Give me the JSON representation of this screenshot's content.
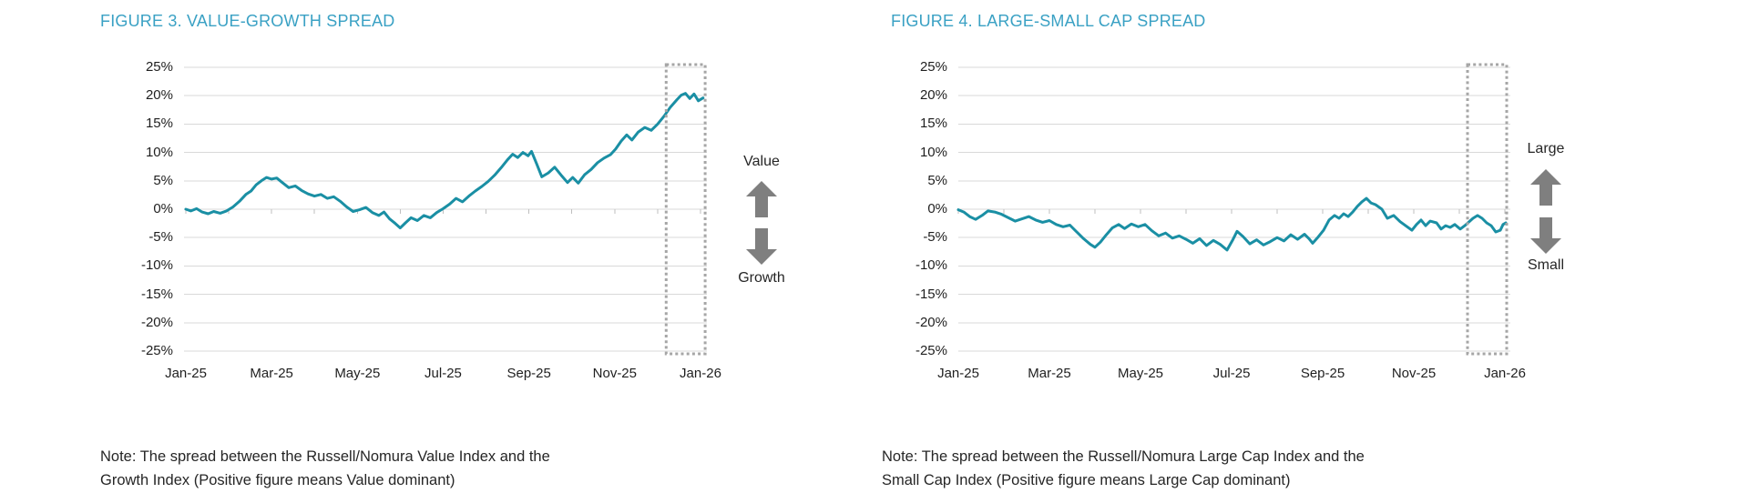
{
  "page": {
    "background": "#ffffff"
  },
  "chart_data": [
    {
      "type": "line",
      "title": "FIGURE 3. VALUE-GROWTH SPREAD",
      "title_color": "#3aa1c4",
      "note_line1": "Note: The spread between the Russell/Nomura Value Index and the",
      "note_line2": "Growth Index (Positive figure means Value dominant)",
      "annotation": {
        "top": "Value",
        "bottom": "Growth",
        "arrow_color": "#7f7f7f"
      },
      "x_tick_labels": [
        "Jan-25",
        "Mar-25",
        "May-25",
        "Jul-25",
        "Sep-25",
        "Nov-25",
        "Jan-26"
      ],
      "y_tick_labels": [
        "25%",
        "20%",
        "15%",
        "10%",
        "5%",
        "0%",
        "-5%",
        "-10%",
        "-15%",
        "-20%",
        "-25%"
      ],
      "ylim": [
        -25,
        25
      ],
      "grid": true,
      "grid_color": "#d9d9d9",
      "tick_color": "#bfbfbf",
      "line_color": "#1a8fa4",
      "highlight_box": {
        "from_month": 11.2,
        "to_month": 12.11,
        "color": "#a6a6a6"
      },
      "series": [
        {
          "name": "Value minus Growth spread (%)",
          "points": [
            [
              0.0,
              0.0
            ],
            [
              0.12,
              -0.3
            ],
            [
              0.25,
              0.1
            ],
            [
              0.38,
              -0.5
            ],
            [
              0.52,
              -0.8
            ],
            [
              0.65,
              -0.4
            ],
            [
              0.8,
              -0.7
            ],
            [
              0.95,
              -0.3
            ],
            [
              1.1,
              0.4
            ],
            [
              1.25,
              1.4
            ],
            [
              1.4,
              2.6
            ],
            [
              1.52,
              3.2
            ],
            [
              1.64,
              4.3
            ],
            [
              1.76,
              5.0
            ],
            [
              1.88,
              5.6
            ],
            [
              2.0,
              5.3
            ],
            [
              2.12,
              5.5
            ],
            [
              2.25,
              4.7
            ],
            [
              2.4,
              3.8
            ],
            [
              2.55,
              4.1
            ],
            [
              2.7,
              3.3
            ],
            [
              2.85,
              2.7
            ],
            [
              3.0,
              2.3
            ],
            [
              3.15,
              2.6
            ],
            [
              3.3,
              1.9
            ],
            [
              3.45,
              2.2
            ],
            [
              3.6,
              1.4
            ],
            [
              3.75,
              0.4
            ],
            [
              3.9,
              -0.4
            ],
            [
              4.05,
              -0.1
            ],
            [
              4.2,
              0.3
            ],
            [
              4.35,
              -0.6
            ],
            [
              4.5,
              -1.1
            ],
            [
              4.62,
              -0.5
            ],
            [
              4.75,
              -1.7
            ],
            [
              4.88,
              -2.5
            ],
            [
              5.0,
              -3.3
            ],
            [
              5.12,
              -2.4
            ],
            [
              5.25,
              -1.5
            ],
            [
              5.4,
              -2.0
            ],
            [
              5.55,
              -1.1
            ],
            [
              5.7,
              -1.5
            ],
            [
              5.85,
              -0.6
            ],
            [
              6.0,
              0.1
            ],
            [
              6.15,
              0.9
            ],
            [
              6.3,
              1.9
            ],
            [
              6.45,
              1.3
            ],
            [
              6.6,
              2.3
            ],
            [
              6.75,
              3.2
            ],
            [
              6.9,
              4.0
            ],
            [
              7.05,
              4.9
            ],
            [
              7.2,
              6.0
            ],
            [
              7.35,
              7.3
            ],
            [
              7.5,
              8.7
            ],
            [
              7.62,
              9.7
            ],
            [
              7.74,
              9.1
            ],
            [
              7.86,
              10.0
            ],
            [
              7.98,
              9.4
            ],
            [
              8.06,
              10.2
            ],
            [
              8.18,
              8.0
            ],
            [
              8.3,
              5.7
            ],
            [
              8.45,
              6.4
            ],
            [
              8.6,
              7.4
            ],
            [
              8.75,
              6.0
            ],
            [
              8.9,
              4.7
            ],
            [
              9.02,
              5.6
            ],
            [
              9.15,
              4.6
            ],
            [
              9.3,
              6.1
            ],
            [
              9.45,
              7.0
            ],
            [
              9.6,
              8.2
            ],
            [
              9.75,
              9.0
            ],
            [
              9.9,
              9.6
            ],
            [
              10.02,
              10.6
            ],
            [
              10.15,
              12.0
            ],
            [
              10.28,
              13.1
            ],
            [
              10.4,
              12.2
            ],
            [
              10.55,
              13.6
            ],
            [
              10.7,
              14.4
            ],
            [
              10.85,
              13.9
            ],
            [
              11.0,
              15.0
            ],
            [
              11.15,
              16.4
            ],
            [
              11.3,
              18.0
            ],
            [
              11.45,
              19.3
            ],
            [
              11.55,
              20.1
            ],
            [
              11.65,
              20.4
            ],
            [
              11.75,
              19.5
            ],
            [
              11.85,
              20.3
            ],
            [
              11.95,
              19.1
            ],
            [
              12.06,
              19.6
            ]
          ]
        }
      ]
    },
    {
      "type": "line",
      "title": "FIGURE 4. LARGE-SMALL CAP SPREAD",
      "title_color": "#3aa1c4",
      "note_line1": "Note: The spread between the Russell/Nomura Large Cap Index and the",
      "note_line2": "Small Cap Index (Positive figure means Large Cap dominant)",
      "annotation": {
        "top": "Large",
        "bottom": "Small",
        "arrow_color": "#7f7f7f"
      },
      "x_tick_labels": [
        "Jan-25",
        "Mar-25",
        "May-25",
        "Jul-25",
        "Sep-25",
        "Nov-25",
        "Jan-26"
      ],
      "y_tick_labels": [
        "25%",
        "20%",
        "15%",
        "10%",
        "5%",
        "0%",
        "-5%",
        "-10%",
        "-15%",
        "-20%",
        "-25%"
      ],
      "ylim": [
        -25,
        25
      ],
      "grid": true,
      "grid_color": "#d9d9d9",
      "tick_color": "#bfbfbf",
      "line_color": "#1a8fa4",
      "highlight_box": {
        "from_month": 11.18,
        "to_month": 12.04,
        "color": "#a6a6a6"
      },
      "series": [
        {
          "name": "Large Cap minus Small Cap spread (%)",
          "points": [
            [
              0.0,
              -0.1
            ],
            [
              0.12,
              -0.5
            ],
            [
              0.25,
              -1.3
            ],
            [
              0.38,
              -1.8
            ],
            [
              0.52,
              -1.1
            ],
            [
              0.65,
              -0.3
            ],
            [
              0.8,
              -0.5
            ],
            [
              0.95,
              -0.9
            ],
            [
              1.1,
              -1.5
            ],
            [
              1.25,
              -2.1
            ],
            [
              1.4,
              -1.7
            ],
            [
              1.55,
              -1.3
            ],
            [
              1.7,
              -1.9
            ],
            [
              1.85,
              -2.3
            ],
            [
              2.0,
              -2.0
            ],
            [
              2.15,
              -2.7
            ],
            [
              2.3,
              -3.1
            ],
            [
              2.45,
              -2.8
            ],
            [
              2.6,
              -4.0
            ],
            [
              2.75,
              -5.2
            ],
            [
              2.9,
              -6.2
            ],
            [
              3.0,
              -6.7
            ],
            [
              3.12,
              -5.8
            ],
            [
              3.25,
              -4.5
            ],
            [
              3.38,
              -3.3
            ],
            [
              3.52,
              -2.7
            ],
            [
              3.65,
              -3.4
            ],
            [
              3.8,
              -2.6
            ],
            [
              3.95,
              -3.1
            ],
            [
              4.1,
              -2.7
            ],
            [
              4.25,
              -3.8
            ],
            [
              4.4,
              -4.7
            ],
            [
              4.55,
              -4.2
            ],
            [
              4.7,
              -5.1
            ],
            [
              4.85,
              -4.7
            ],
            [
              5.0,
              -5.3
            ],
            [
              5.15,
              -6.0
            ],
            [
              5.3,
              -5.2
            ],
            [
              5.45,
              -6.4
            ],
            [
              5.6,
              -5.5
            ],
            [
              5.75,
              -6.2
            ],
            [
              5.9,
              -7.2
            ],
            [
              6.02,
              -5.5
            ],
            [
              6.12,
              -3.9
            ],
            [
              6.25,
              -4.8
            ],
            [
              6.4,
              -6.1
            ],
            [
              6.55,
              -5.4
            ],
            [
              6.7,
              -6.3
            ],
            [
              6.85,
              -5.7
            ],
            [
              7.0,
              -5.0
            ],
            [
              7.15,
              -5.6
            ],
            [
              7.3,
              -4.5
            ],
            [
              7.45,
              -5.3
            ],
            [
              7.6,
              -4.4
            ],
            [
              7.7,
              -5.2
            ],
            [
              7.78,
              -6.0
            ],
            [
              7.88,
              -5.1
            ],
            [
              8.02,
              -3.7
            ],
            [
              8.14,
              -1.9
            ],
            [
              8.26,
              -1.1
            ],
            [
              8.36,
              -1.6
            ],
            [
              8.46,
              -0.8
            ],
            [
              8.56,
              -1.3
            ],
            [
              8.66,
              -0.5
            ],
            [
              8.76,
              0.5
            ],
            [
              8.86,
              1.3
            ],
            [
              8.96,
              1.9
            ],
            [
              9.06,
              1.1
            ],
            [
              9.16,
              0.8
            ],
            [
              9.3,
              0.0
            ],
            [
              9.42,
              -1.6
            ],
            [
              9.56,
              -1.1
            ],
            [
              9.7,
              -2.2
            ],
            [
              9.82,
              -2.9
            ],
            [
              9.96,
              -3.7
            ],
            [
              10.06,
              -2.7
            ],
            [
              10.16,
              -1.9
            ],
            [
              10.26,
              -2.9
            ],
            [
              10.36,
              -2.1
            ],
            [
              10.5,
              -2.4
            ],
            [
              10.6,
              -3.5
            ],
            [
              10.7,
              -2.9
            ],
            [
              10.8,
              -3.2
            ],
            [
              10.9,
              -2.7
            ],
            [
              11.02,
              -3.5
            ],
            [
              11.12,
              -2.9
            ],
            [
              11.3,
              -1.6
            ],
            [
              11.4,
              -1.1
            ],
            [
              11.5,
              -1.6
            ],
            [
              11.6,
              -2.4
            ],
            [
              11.7,
              -2.9
            ],
            [
              11.8,
              -4.0
            ],
            [
              11.9,
              -3.7
            ],
            [
              11.96,
              -2.7
            ],
            [
              12.02,
              -2.4
            ]
          ]
        }
      ]
    }
  ]
}
